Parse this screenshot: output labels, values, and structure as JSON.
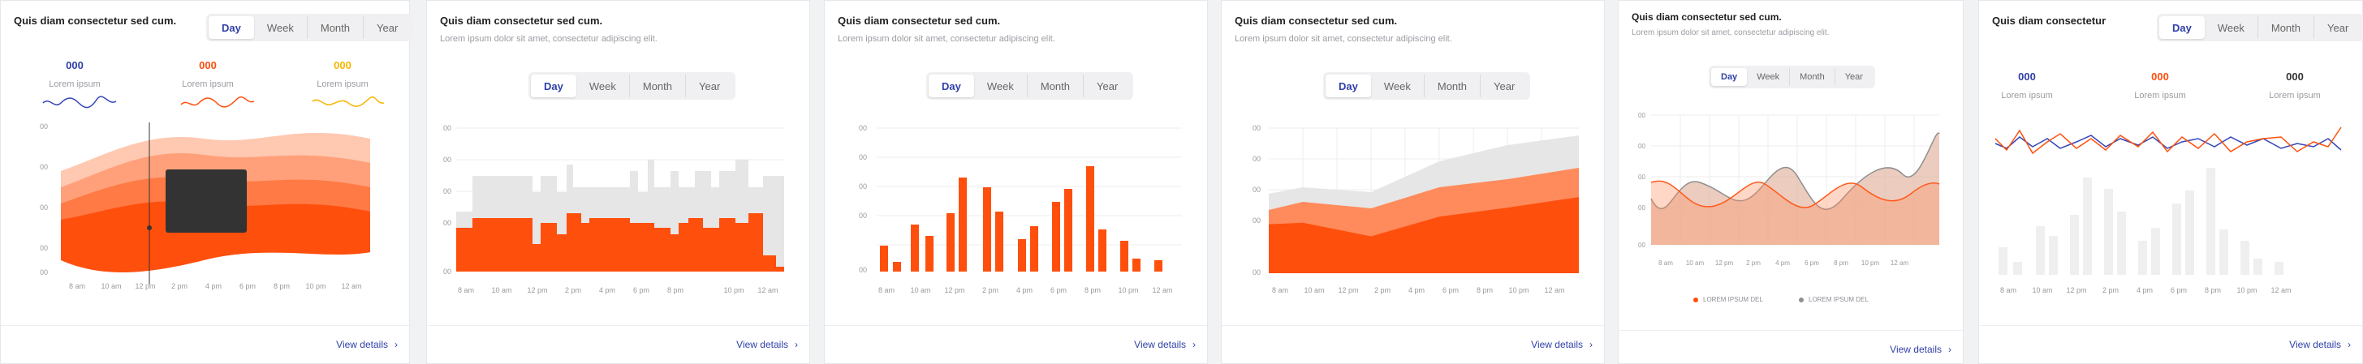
{
  "colors": {
    "accent": "#2f3fa8",
    "orange": "#ff4f0d",
    "light_orange": "#ffc8b0",
    "mid_orange": "#ff8b5c",
    "grey": "#e6e6e6",
    "blue": "#3446b8",
    "yellow": "#f7b500",
    "dark": "#333333"
  },
  "segments": [
    "Day",
    "Week",
    "Month",
    "Year"
  ],
  "view_details": "View details",
  "view_details_icon": "chevron-right-icon",
  "x_ticks": [
    "8 am",
    "10 am",
    "12 pm",
    "2 pm",
    "4 pm",
    "6 pm",
    "8 pm",
    "10 pm",
    "12 am"
  ],
  "y_ticks": [
    "00",
    "00",
    "00",
    "00",
    "00"
  ],
  "lorem": "Lorem ipsum dolor sit amet, consectetur adipiscing elit.",
  "cards": [
    {
      "title": "Quis diam consectetur sed cum.",
      "stats": [
        {
          "value": "000",
          "label": "Lorem ipsum"
        },
        {
          "value": "000",
          "label": "Lorem ipsum"
        },
        {
          "value": "000",
          "label": "Lorem ipsum"
        }
      ],
      "chart_data": {
        "type": "area",
        "chart": "stream"
      }
    },
    {
      "title": "Quis diam consectetur sed cum.",
      "chart_data": {
        "type": "bar",
        "chart": "step"
      }
    },
    {
      "title": "Quis diam consectetur sed cum.",
      "chart_data": {
        "type": "bar",
        "chart": "bars"
      }
    },
    {
      "title": "Quis diam consectetur sed cum.",
      "chart_data": {
        "type": "area",
        "chart": "stacked"
      }
    },
    {
      "title": "Quis diam consectetur sed cum.",
      "legend": [
        "LOREM IPSUM DEL",
        "LOREM IPSUM DEL"
      ],
      "chart_data": {
        "type": "line",
        "chart": "waves"
      }
    },
    {
      "title": "Quis diam consectetur",
      "stats": [
        {
          "value": "000",
          "label": "Lorem ipsum"
        },
        {
          "value": "000",
          "label": "Lorem ipsum"
        },
        {
          "value": "000",
          "label": "Lorem ipsum"
        }
      ],
      "chart_data": {
        "type": "line",
        "chart": "combo"
      }
    }
  ]
}
